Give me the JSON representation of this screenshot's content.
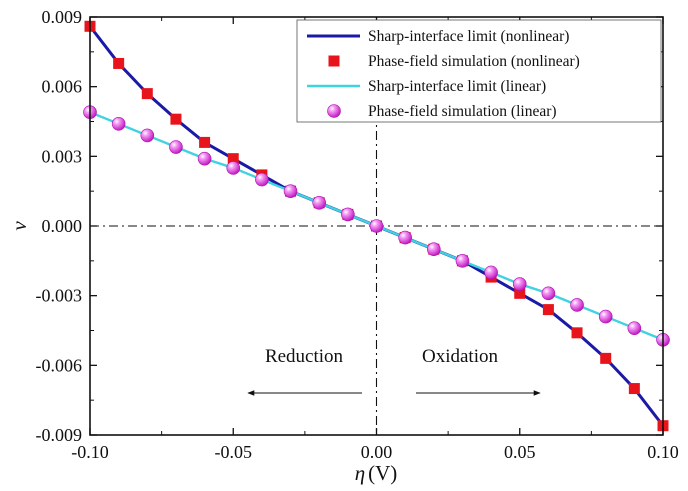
{
  "chart_data": {
    "type": "line",
    "xlabel_symbol": "η",
    "xlabel_unit": "(V)",
    "ylabel": "v",
    "xlim": [
      -0.1,
      0.1
    ],
    "ylim": [
      -0.009,
      0.009
    ],
    "x_ticks": [
      -0.1,
      -0.05,
      0.0,
      0.05,
      0.1
    ],
    "x_tick_labels": [
      "-0.10",
      "-0.05",
      "0.00",
      "0.05",
      "0.10"
    ],
    "y_ticks": [
      0.009,
      0.006,
      0.003,
      0.0,
      -0.003,
      -0.006,
      -0.009
    ],
    "y_tick_labels": [
      "0.009",
      "0.006",
      "0.003",
      "0.000",
      "-0.003",
      "-0.006",
      "-0.009"
    ],
    "grid": false,
    "legend_position": "top-right",
    "annotations": [
      {
        "text": "Reduction",
        "arrow": "left"
      },
      {
        "text": "Oxidation",
        "arrow": "right"
      }
    ],
    "series": [
      {
        "name": "Sharp-interface limit (nonlinear)",
        "kind": "line",
        "color": "#1a1aa6",
        "x": [
          -0.1,
          -0.09,
          -0.08,
          -0.07,
          -0.06,
          -0.05,
          -0.04,
          -0.03,
          -0.02,
          -0.01,
          0.0,
          0.01,
          0.02,
          0.03,
          0.04,
          0.05,
          0.06,
          0.07,
          0.08,
          0.09,
          0.1
        ],
        "y": [
          0.0086,
          0.007,
          0.0057,
          0.0046,
          0.0036,
          0.0029,
          0.0022,
          0.0015,
          0.001,
          0.0005,
          0.0,
          -0.0005,
          -0.001,
          -0.0015,
          -0.0022,
          -0.0029,
          -0.0036,
          -0.0046,
          -0.0057,
          -0.007,
          -0.0086
        ]
      },
      {
        "name": "Phase-field simulation (nonlinear)",
        "kind": "square",
        "color": "#e8141c",
        "x": [
          -0.1,
          -0.09,
          -0.08,
          -0.07,
          -0.06,
          -0.05,
          -0.04,
          -0.03,
          -0.02,
          -0.01,
          0.0,
          0.01,
          0.02,
          0.03,
          0.04,
          0.05,
          0.06,
          0.07,
          0.08,
          0.09,
          0.1
        ],
        "y": [
          0.0086,
          0.007,
          0.0057,
          0.0046,
          0.0036,
          0.0029,
          0.0022,
          0.0015,
          0.001,
          0.0005,
          0.0,
          -0.0005,
          -0.001,
          -0.0015,
          -0.0022,
          -0.0029,
          -0.0036,
          -0.0046,
          -0.0057,
          -0.007,
          -0.0086
        ]
      },
      {
        "name": "Sharp-interface limit (linear)",
        "kind": "line",
        "color": "#3fd3e0",
        "x": [
          -0.1,
          -0.09,
          -0.08,
          -0.07,
          -0.06,
          -0.05,
          -0.04,
          -0.03,
          -0.02,
          -0.01,
          0.0,
          0.01,
          0.02,
          0.03,
          0.04,
          0.05,
          0.06,
          0.07,
          0.08,
          0.09,
          0.1
        ],
        "y": [
          0.0049,
          0.0044,
          0.0039,
          0.0034,
          0.0029,
          0.0025,
          0.002,
          0.0015,
          0.001,
          0.0005,
          0.0,
          -0.0005,
          -0.001,
          -0.0015,
          -0.002,
          -0.0025,
          -0.0029,
          -0.0034,
          -0.0039,
          -0.0044,
          -0.0049
        ]
      },
      {
        "name": "Phase-field simulation (linear)",
        "kind": "sphere",
        "color": "#e040e0",
        "x": [
          -0.1,
          -0.09,
          -0.08,
          -0.07,
          -0.06,
          -0.05,
          -0.04,
          -0.03,
          -0.02,
          -0.01,
          0.0,
          0.01,
          0.02,
          0.03,
          0.04,
          0.05,
          0.06,
          0.07,
          0.08,
          0.09,
          0.1
        ],
        "y": [
          0.0049,
          0.0044,
          0.0039,
          0.0034,
          0.0029,
          0.0025,
          0.002,
          0.0015,
          0.001,
          0.0005,
          0.0,
          -0.0005,
          -0.001,
          -0.0015,
          -0.002,
          -0.0025,
          -0.0029,
          -0.0034,
          -0.0039,
          -0.0044,
          -0.0049
        ]
      }
    ]
  }
}
